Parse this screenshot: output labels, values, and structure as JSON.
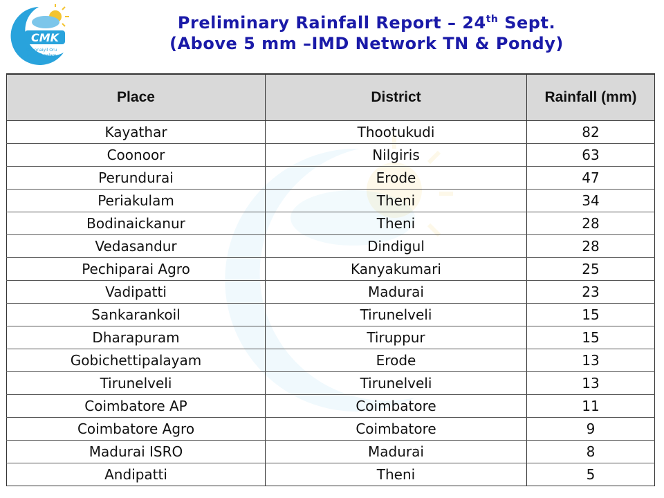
{
  "header": {
    "logo": {
      "icon": "cmk-logo-icon",
      "letters": "CMK",
      "tagline_1": "Chennaiyil Oru",
      "tagline_2": "Mazhaikaalam"
    },
    "title_line1_pre": "Preliminary Rainfall Report – 24",
    "title_line1_sup": "th",
    "title_line1_post": " Sept.",
    "title_line2": "(Above 5 mm –IMD Network TN & Pondy)"
  },
  "colors": {
    "title": "#1a1aa8",
    "header_bg": "#d9d9d9",
    "logo_blue": "#29a3dc",
    "logo_sun": "#f4c430"
  },
  "table": {
    "columns": [
      "Place",
      "District",
      "Rainfall (mm)"
    ],
    "rows": [
      {
        "place": "Kayathar",
        "district": "Thootukudi",
        "rainfall": "82"
      },
      {
        "place": "Coonoor",
        "district": "Nilgiris",
        "rainfall": "63"
      },
      {
        "place": "Perundurai",
        "district": "Erode",
        "rainfall": "47"
      },
      {
        "place": "Periakulam",
        "district": "Theni",
        "rainfall": "34"
      },
      {
        "place": "Bodinaickanur",
        "district": "Theni",
        "rainfall": "28"
      },
      {
        "place": "Vedasandur",
        "district": "Dindigul",
        "rainfall": "28"
      },
      {
        "place": "Pechiparai Agro",
        "district": "Kanyakumari",
        "rainfall": "25"
      },
      {
        "place": "Vadipatti",
        "district": "Madurai",
        "rainfall": "23"
      },
      {
        "place": "Sankarankoil",
        "district": "Tirunelveli",
        "rainfall": "15"
      },
      {
        "place": "Dharapuram",
        "district": "Tiruppur",
        "rainfall": "15"
      },
      {
        "place": "Gobichettipalayam",
        "district": "Erode",
        "rainfall": "13"
      },
      {
        "place": "Tirunelveli",
        "district": "Tirunelveli",
        "rainfall": "13"
      },
      {
        "place": "Coimbatore AP",
        "district": "Coimbatore",
        "rainfall": "11"
      },
      {
        "place": "Coimbatore Agro",
        "district": "Coimbatore",
        "rainfall": "9"
      },
      {
        "place": "Madurai ISRO",
        "district": "Madurai",
        "rainfall": "8"
      },
      {
        "place": "Andipatti",
        "district": "Theni",
        "rainfall": "5"
      }
    ]
  }
}
